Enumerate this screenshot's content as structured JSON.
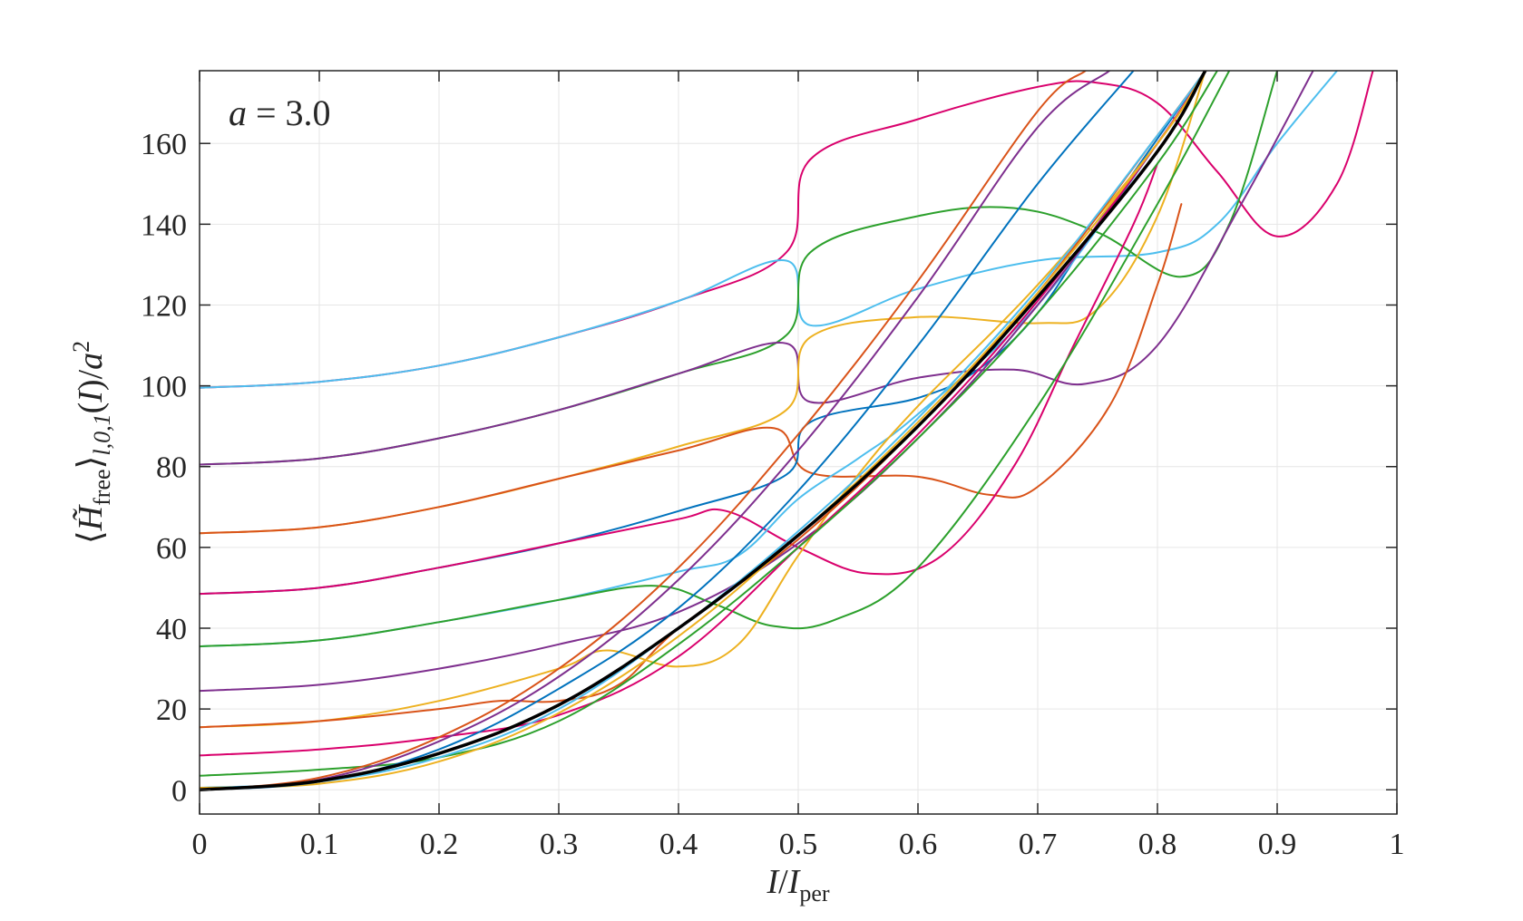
{
  "chart_data": {
    "type": "line",
    "annotation": "a = 3.0",
    "xlabel": "I/I_per",
    "ylabel": "⟨H̃_free⟩_{l,0,1}(I)/a²",
    "xlim": [
      0,
      1
    ],
    "ylim": [
      -6,
      178
    ],
    "xticks": [
      0,
      0.1,
      0.2,
      0.3,
      0.4,
      0.5,
      0.6,
      0.7,
      0.8,
      0.9,
      1
    ],
    "xtick_labels": [
      "0",
      "0.1",
      "0.2",
      "0.3",
      "0.4",
      "0.5",
      "0.6",
      "0.7",
      "0.8",
      "0.9",
      "1"
    ],
    "yticks": [
      0,
      20,
      40,
      60,
      80,
      100,
      120,
      140,
      160
    ],
    "ytick_labels": [
      "0",
      "20",
      "40",
      "60",
      "80",
      "100",
      "120",
      "140",
      "160"
    ],
    "grid": true,
    "series": [
      {
        "color": "#D9006C",
        "x": [
          0,
          0.1,
          0.2,
          0.3,
          0.4,
          0.49,
          0.51,
          0.6,
          0.7,
          0.75,
          0.8,
          0.85,
          0.9,
          0.95,
          0.98
        ],
        "y": [
          99.5,
          101,
          105,
          112,
          121,
          133,
          156,
          166,
          174,
          175,
          170,
          153,
          137,
          150,
          178
        ]
      },
      {
        "color": "#4DBEEE",
        "x": [
          0,
          0.1,
          0.2,
          0.3,
          0.4,
          0.49,
          0.51,
          0.6,
          0.7,
          0.8,
          0.85,
          0.9,
          0.95
        ],
        "y": [
          99.5,
          101,
          105,
          112,
          121,
          131,
          115,
          124,
          131,
          133,
          140,
          160,
          178
        ]
      },
      {
        "color": "#2CA02C",
        "x": [
          0,
          0.1,
          0.2,
          0.3,
          0.4,
          0.49,
          0.51,
          0.6,
          0.68,
          0.75,
          0.82,
          0.86,
          0.9
        ],
        "y": [
          80.5,
          82,
          87,
          94,
          103,
          112.5,
          133,
          142,
          144,
          138,
          127,
          140,
          178
        ]
      },
      {
        "color": "#7E2F8E",
        "x": [
          0,
          0.1,
          0.2,
          0.3,
          0.4,
          0.49,
          0.51,
          0.6,
          0.68,
          0.74,
          0.8,
          0.87,
          0.93
        ],
        "y": [
          80.5,
          82,
          87,
          94,
          103,
          110.5,
          96,
          102,
          104,
          100.5,
          110,
          145,
          178
        ]
      },
      {
        "color": "#EDB120",
        "x": [
          0,
          0.1,
          0.2,
          0.3,
          0.4,
          0.49,
          0.51,
          0.6,
          0.7,
          0.75,
          0.8,
          0.84
        ],
        "y": [
          63.5,
          65,
          70,
          77,
          85,
          94,
          112,
          117,
          115.5,
          119,
          142,
          178
        ]
      },
      {
        "color": "#D95319",
        "x": [
          0,
          0.1,
          0.2,
          0.3,
          0.4,
          0.48,
          0.51,
          0.6,
          0.66,
          0.7,
          0.76,
          0.8,
          0.82
        ],
        "y": [
          63.5,
          65,
          70,
          77,
          84,
          89.5,
          78.5,
          77.5,
          73,
          75,
          95,
          125,
          145
        ]
      },
      {
        "color": "#0072BD",
        "x": [
          0,
          0.1,
          0.2,
          0.3,
          0.4,
          0.49,
          0.51,
          0.6,
          0.65,
          0.7,
          0.75,
          0.84
        ],
        "y": [
          48.5,
          50,
          55,
          61,
          69,
          78,
          91,
          97,
          104,
          118,
          140,
          178
        ]
      },
      {
        "color": "#D9006C",
        "x": [
          0,
          0.1,
          0.2,
          0.3,
          0.4,
          0.44,
          0.5,
          0.56,
          0.62,
          0.68,
          0.73,
          0.78,
          0.8
        ],
        "y": [
          48.5,
          50,
          55,
          61,
          67,
          69,
          60,
          53.5,
          58,
          80,
          110,
          140,
          155
        ]
      },
      {
        "color": "#4DBEEE",
        "x": [
          0,
          0.1,
          0.2,
          0.3,
          0.4,
          0.45,
          0.5,
          0.55,
          0.6,
          0.7,
          0.8,
          0.84
        ],
        "y": [
          35.5,
          37,
          41.5,
          47,
          54,
          58,
          72,
          82,
          93,
          120,
          160,
          178
        ]
      },
      {
        "color": "#2CA02C",
        "x": [
          0,
          0.1,
          0.2,
          0.3,
          0.38,
          0.43,
          0.48,
          0.53,
          0.6,
          0.7,
          0.8,
          0.86
        ],
        "y": [
          35.5,
          37,
          41.5,
          47,
          50.5,
          46,
          40.5,
          42,
          55,
          95,
          145,
          178
        ]
      },
      {
        "color": "#7E2F8E",
        "x": [
          0,
          0.1,
          0.2,
          0.3,
          0.4,
          0.5,
          0.6,
          0.7,
          0.8,
          0.84
        ],
        "y": [
          24.5,
          26,
          30,
          36,
          44,
          61,
          87,
          120,
          160,
          178
        ]
      },
      {
        "color": "#EDB120",
        "x": [
          0,
          0.1,
          0.2,
          0.3,
          0.34,
          0.4,
          0.45,
          0.5,
          0.55,
          0.6,
          0.7,
          0.8,
          0.84
        ],
        "y": [
          15.5,
          17,
          22,
          30,
          34.5,
          30.5,
          36,
          58,
          78,
          95,
          125,
          160,
          178
        ]
      },
      {
        "color": "#D95319",
        "x": [
          0,
          0.1,
          0.2,
          0.25,
          0.3,
          0.35,
          0.4,
          0.5,
          0.6,
          0.7,
          0.8,
          0.84
        ],
        "y": [
          15.5,
          17,
          20,
          22,
          22,
          26,
          40,
          62,
          90,
          123,
          162,
          178
        ]
      },
      {
        "color": "#D9006C",
        "x": [
          0,
          0.1,
          0.2,
          0.3,
          0.4,
          0.5,
          0.6,
          0.7,
          0.8,
          0.84
        ],
        "y": [
          8.5,
          10,
          13,
          18.5,
          33,
          60,
          88,
          121,
          160,
          178
        ]
      },
      {
        "color": "#2CA02C",
        "x": [
          0,
          0.1,
          0.2,
          0.3,
          0.4,
          0.5,
          0.6,
          0.7,
          0.8,
          0.85
        ],
        "y": [
          3.5,
          5,
          8,
          17,
          36,
          60,
          87,
          118,
          155,
          178
        ]
      },
      {
        "color": "#4DBEEE",
        "x": [
          0,
          0.1,
          0.2,
          0.3,
          0.4,
          0.5,
          0.6,
          0.7,
          0.8,
          0.84
        ],
        "y": [
          0.5,
          2,
          8,
          20,
          40,
          64,
          92,
          124,
          162,
          178
        ]
      },
      {
        "color": "#EDB120",
        "x": [
          0,
          0.1,
          0.2,
          0.3,
          0.4,
          0.5,
          0.6,
          0.7,
          0.8,
          0.84
        ],
        "y": [
          0.5,
          1.5,
          7,
          19,
          38,
          63,
          91,
          123,
          160,
          178
        ]
      },
      {
        "color": "#D95319",
        "x": [
          0,
          0.1,
          0.2,
          0.3,
          0.4,
          0.5,
          0.6,
          0.7,
          0.74
        ],
        "y": [
          0,
          3,
          13,
          30,
          55,
          88,
          126,
          168,
          178
        ]
      },
      {
        "color": "#7E2F8E",
        "x": [
          0,
          0.1,
          0.2,
          0.3,
          0.4,
          0.5,
          0.6,
          0.7,
          0.76
        ],
        "y": [
          0,
          2.5,
          12,
          28,
          52,
          84,
          122,
          164,
          178
        ]
      },
      {
        "color": "#0072BD",
        "x": [
          0,
          0.1,
          0.2,
          0.3,
          0.4,
          0.5,
          0.6,
          0.7,
          0.78
        ],
        "y": [
          0,
          2,
          10,
          25,
          45,
          74,
          110,
          150,
          178
        ]
      },
      {
        "color": "#000000",
        "x": [
          0,
          0.1,
          0.2,
          0.3,
          0.4,
          0.5,
          0.6,
          0.7,
          0.8,
          0.84
        ],
        "y": [
          0,
          2.2,
          9,
          21,
          40,
          63,
          90,
          122,
          158,
          178
        ]
      }
    ]
  }
}
